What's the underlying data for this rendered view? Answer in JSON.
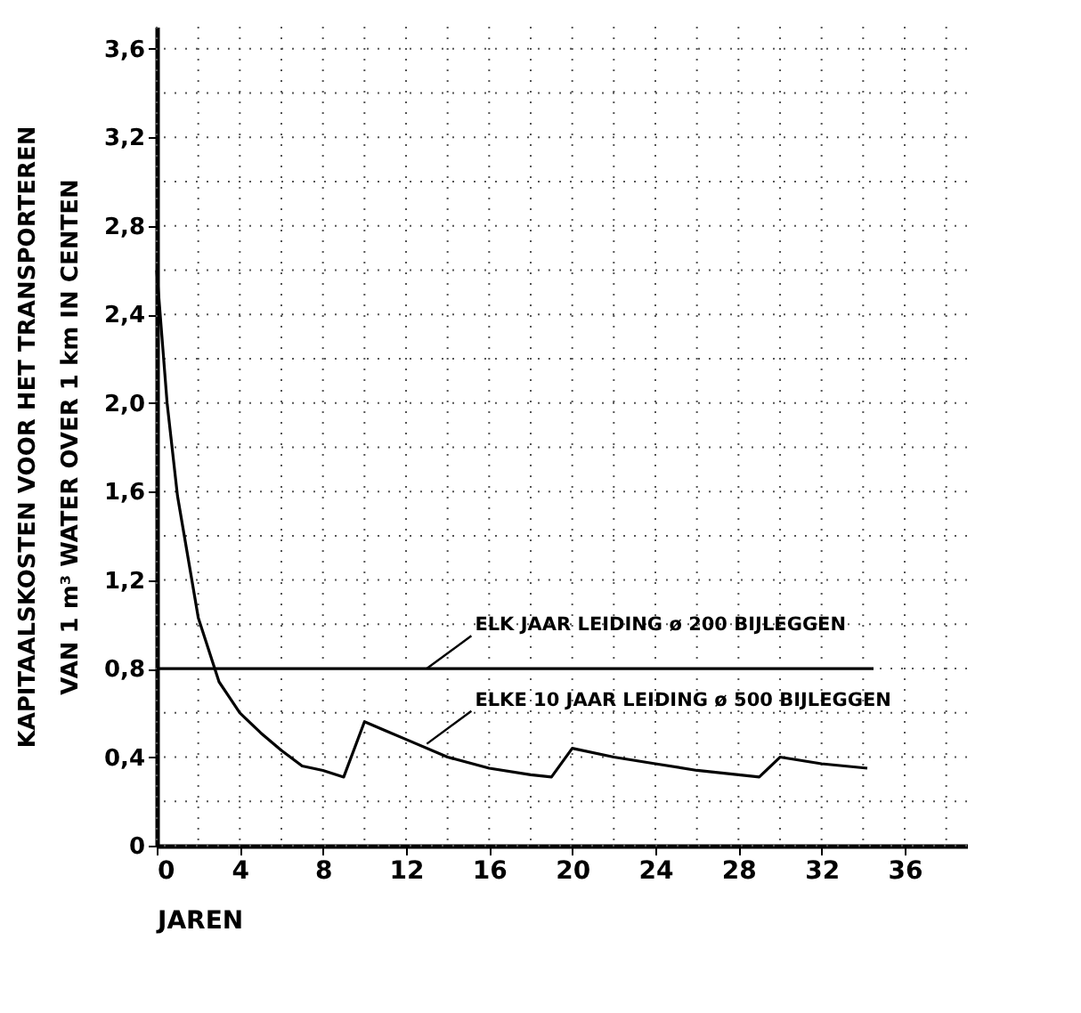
{
  "chart_data": {
    "type": "line",
    "xlabel": "JAREN",
    "ylabel": "KAPITAALSKOSTEN VOOR HET TRANSPORTEREN\nVAN 1 m³ WATER OVER 1 km IN CENTEN",
    "xlim": [
      0,
      39
    ],
    "xticks": [
      0,
      {
        "value": 2,
        "label": null
      },
      4,
      {
        "value": 6,
        "label": null
      },
      8,
      {
        "value": 10,
        "label": null
      },
      12,
      {
        "value": 14,
        "label": null
      },
      16,
      {
        "value": 18,
        "label": null
      },
      20,
      {
        "value": 22,
        "label": null
      },
      24,
      {
        "value": 26,
        "label": null
      },
      28,
      {
        "value": 30,
        "label": null
      },
      32,
      {
        "value": 34,
        "label": null
      },
      36,
      {
        "value": 38,
        "label": null
      }
    ],
    "ylim": [
      0,
      3.7
    ],
    "yticks": [
      0,
      {
        "value": 0.2,
        "label": null
      },
      {
        "value": 0.4,
        "label": "0,4"
      },
      {
        "value": 0.6,
        "label": null
      },
      {
        "value": 0.8,
        "label": "0,8"
      },
      {
        "value": 1.0,
        "label": null
      },
      {
        "value": 1.2,
        "label": "1,2"
      },
      {
        "value": 1.4,
        "label": null
      },
      {
        "value": 1.6,
        "label": "1,6"
      },
      {
        "value": 1.8,
        "label": null
      },
      {
        "value": 2.0,
        "label": "2,0"
      },
      {
        "value": 2.2,
        "label": null
      },
      {
        "value": 2.4,
        "label": "2,4"
      },
      {
        "value": 2.6,
        "label": null
      },
      {
        "value": 2.8,
        "label": "2,8"
      },
      {
        "value": 3.0,
        "label": null
      },
      {
        "value": 3.2,
        "label": "3,2"
      },
      {
        "value": 3.4,
        "label": null
      },
      {
        "value": 3.6,
        "label": "3,6"
      }
    ],
    "grid": true,
    "series": [
      {
        "color": "#000000",
        "x": [
          0,
          34.5
        ],
        "values": [
          0.8,
          0.8
        ]
      },
      {
        "color": "#000000",
        "x": [
          0,
          0.25,
          0.5,
          1,
          2,
          3,
          4,
          5,
          6,
          7,
          8,
          9,
          10,
          11,
          12,
          14,
          16,
          18,
          19,
          20,
          22,
          24,
          26,
          28,
          29,
          30,
          32,
          34.2
        ],
        "values": [
          2.6,
          2.3,
          2.0,
          1.58,
          1.03,
          0.74,
          0.6,
          0.51,
          0.43,
          0.36,
          0.34,
          0.31,
          0.56,
          0.52,
          0.48,
          0.4,
          0.35,
          0.32,
          0.31,
          0.44,
          0.4,
          0.37,
          0.34,
          0.32,
          0.31,
          0.4,
          0.37,
          0.35
        ]
      }
    ],
    "annotations": [
      {
        "text": "ELK JAAR LEIDING ø 200 BIJLEGGEN",
        "x": 13,
        "y": 0.8
      },
      {
        "text": "ELKE 10 JAAR LEIDING ø 500 BIJLEGGEN",
        "x": 13,
        "y": 0.46
      }
    ]
  }
}
